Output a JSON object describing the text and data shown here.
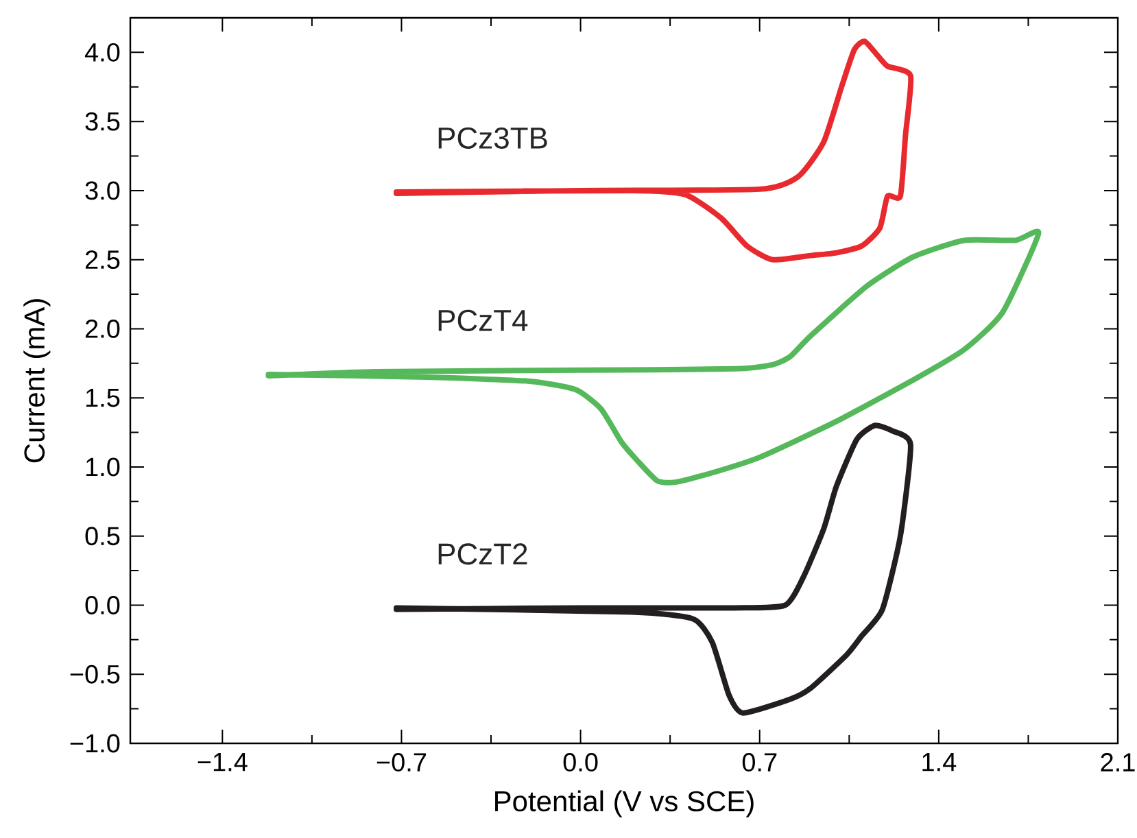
{
  "chart_data": {
    "type": "line",
    "xlabel": "Potential (V vs SCE)",
    "ylabel": "Current (mA)",
    "xlim": [
      -1.76,
      2.1
    ],
    "ylim": [
      -1.0,
      4.25
    ],
    "xticks": [
      {
        "value": -1.4,
        "label": "−1.4"
      },
      {
        "value": -1.05,
        "label": null
      },
      {
        "value": -0.7,
        "label": "−0.7"
      },
      {
        "value": -0.35,
        "label": null
      },
      {
        "value": 0,
        "label": "0.0"
      },
      {
        "value": 0.35,
        "label": null
      },
      {
        "value": 0.7,
        "label": "0.7"
      },
      {
        "value": 1.05,
        "label": null
      },
      {
        "value": 1.4,
        "label": "1.4"
      },
      {
        "value": 1.75,
        "label": null
      },
      {
        "value": 2.1,
        "label": "2.1"
      }
    ],
    "yticks": [
      {
        "value": -1.0,
        "label": "−1.0"
      },
      {
        "value": -0.75,
        "label": null
      },
      {
        "value": -0.5,
        "label": "−0.5"
      },
      {
        "value": -0.25,
        "label": null
      },
      {
        "value": 0,
        "label": "0.0"
      },
      {
        "value": 0.25,
        "label": null
      },
      {
        "value": 0.5,
        "label": "0.5"
      },
      {
        "value": 0.75,
        "label": null
      },
      {
        "value": 1.0,
        "label": "1.0"
      },
      {
        "value": 1.25,
        "label": null
      },
      {
        "value": 1.5,
        "label": "1.5"
      },
      {
        "value": 1.75,
        "label": null
      },
      {
        "value": 2.0,
        "label": "2.0"
      },
      {
        "value": 2.25,
        "label": null
      },
      {
        "value": 2.5,
        "label": "2.5"
      },
      {
        "value": 2.75,
        "label": null
      },
      {
        "value": 3.0,
        "label": "3.0"
      },
      {
        "value": 3.25,
        "label": null
      },
      {
        "value": 3.5,
        "label": "3.5"
      },
      {
        "value": 3.75,
        "label": null
      },
      {
        "value": 4.0,
        "label": "4.0"
      }
    ],
    "series": [
      {
        "name": "PCz3TB",
        "color": "#e8292e",
        "x": [
          -0.72,
          0,
          0.7,
          0.85,
          0.95,
          1.02,
          1.07,
          1.11,
          1.16,
          1.2,
          1.29,
          1.27,
          1.25,
          1.2,
          1.17,
          1.1,
          1.0,
          0.9,
          0.75,
          0.65,
          0.55,
          0.41,
          0.2,
          -0.72
        ],
        "values": [
          2.98,
          3.0,
          3.01,
          3.1,
          3.35,
          3.75,
          4.02,
          4.08,
          3.98,
          3.9,
          3.83,
          3.4,
          2.96,
          2.96,
          2.73,
          2.6,
          2.55,
          2.53,
          2.5,
          2.6,
          2.8,
          2.97,
          3.0,
          2.99
        ]
      },
      {
        "name": "PCzT4",
        "color": "#55b85a",
        "x": [
          -1.22,
          -0.8,
          0,
          0.6,
          0.75,
          0.82,
          0.9,
          1.12,
          1.3,
          1.5,
          1.7,
          1.79,
          1.65,
          1.5,
          1.32,
          1.0,
          0.7,
          0.5,
          0.37,
          0.3,
          0.22,
          0.16,
          0.08,
          -0.02,
          -0.2,
          -0.6,
          -1.22
        ],
        "values": [
          1.66,
          1.69,
          1.7,
          1.71,
          1.74,
          1.8,
          1.95,
          2.31,
          2.52,
          2.64,
          2.64,
          2.69,
          2.12,
          1.85,
          1.65,
          1.33,
          1.07,
          0.95,
          0.89,
          0.9,
          1.05,
          1.18,
          1.42,
          1.56,
          1.62,
          1.65,
          1.67
        ]
      },
      {
        "name": "PCzT2",
        "color": "#231f20",
        "x": [
          -0.72,
          0,
          0.6,
          0.8,
          0.87,
          0.95,
          1.0,
          1.08,
          1.15,
          1.22,
          1.29,
          1.25,
          1.18,
          1.1,
          1.04,
          0.9,
          0.82,
          0.635,
          0.58,
          0.515,
          0.44,
          0.2,
          -0.72
        ],
        "values": [
          -0.03,
          -0.02,
          -0.02,
          0.0,
          0.2,
          0.55,
          0.86,
          1.2,
          1.3,
          1.26,
          1.16,
          0.5,
          -0.03,
          -0.22,
          -0.36,
          -0.6,
          -0.68,
          -0.78,
          -0.65,
          -0.27,
          -0.1,
          -0.05,
          -0.02
        ]
      }
    ]
  }
}
